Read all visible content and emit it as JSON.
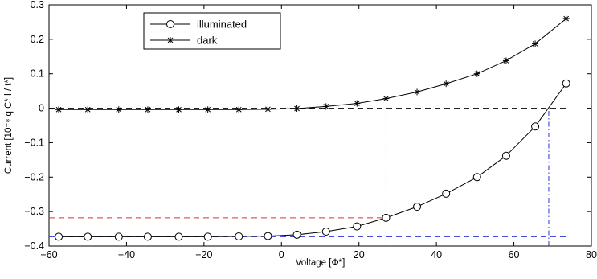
{
  "chart_data": {
    "type": "line",
    "xlabel": "Voltage  [Φ*]",
    "ylabel": "Current  [10⁻⁸ q C* l / t*]",
    "xlim": [
      -60,
      80
    ],
    "ylim": [
      -0.4,
      0.3
    ],
    "xticks": [
      -60,
      -40,
      -20,
      0,
      20,
      40,
      60,
      80
    ],
    "xtick_labels": [
      "−60",
      "−40",
      "−20",
      "0",
      "20",
      "40",
      "60",
      "80"
    ],
    "yticks": [
      -0.4,
      -0.3,
      -0.2,
      -0.1,
      0,
      0.1,
      0.2,
      0.3
    ],
    "ytick_labels": [
      "−0.4",
      "−0.3",
      "−0.2",
      "−0.1",
      "0",
      "0.1",
      "0.2",
      "0.3"
    ],
    "grid": false,
    "legend_position": "top-left",
    "series": [
      {
        "name": "illuminated",
        "marker": "circle",
        "color": "#000000",
        "x": [
          -57.5,
          -50,
          -42,
          -34.5,
          -26.5,
          -19,
          -11,
          -3.5,
          4,
          11.5,
          19.5,
          27,
          35,
          42.5,
          50.5,
          58,
          65.5,
          73.5
        ],
        "y": [
          -0.373,
          -0.373,
          -0.373,
          -0.373,
          -0.373,
          -0.373,
          -0.372,
          -0.371,
          -0.367,
          -0.358,
          -0.343,
          -0.318,
          -0.286,
          -0.248,
          -0.2,
          -0.138,
          -0.053,
          0.072
        ]
      },
      {
        "name": "dark",
        "marker": "star",
        "color": "#000000",
        "x": [
          -57.5,
          -50,
          -42,
          -34.5,
          -26.5,
          -19,
          -11,
          -3.5,
          4,
          11.5,
          19.5,
          27,
          35,
          42.5,
          50.5,
          58,
          65.5,
          73.5
        ],
        "y": [
          -0.004,
          -0.004,
          -0.004,
          -0.004,
          -0.004,
          -0.004,
          -0.004,
          -0.003,
          -0.001,
          0.005,
          0.014,
          0.028,
          0.047,
          0.071,
          0.1,
          0.138,
          0.187,
          0.26
        ]
      }
    ],
    "reference_lines": [
      {
        "kind": "horizontal",
        "y": 0,
        "x_from": -60,
        "x_to": 74,
        "color": "#000000",
        "dash": "dashed"
      },
      {
        "kind": "horizontal",
        "y": -0.318,
        "x_from": -60,
        "x_to": 27,
        "color": "#e03030",
        "dash": "dashed"
      },
      {
        "kind": "vertical",
        "x": 27,
        "y_from": -0.4,
        "y_to": 0,
        "color": "#e03030",
        "dash": "dashdot"
      },
      {
        "kind": "horizontal",
        "y": -0.373,
        "x_from": -60,
        "x_to": 74,
        "color": "#2a36d0",
        "dash": "dashed"
      },
      {
        "kind": "vertical",
        "x": 69,
        "y_from": -0.4,
        "y_to": 0,
        "color": "#2a36d0",
        "dash": "dashdot"
      }
    ]
  }
}
